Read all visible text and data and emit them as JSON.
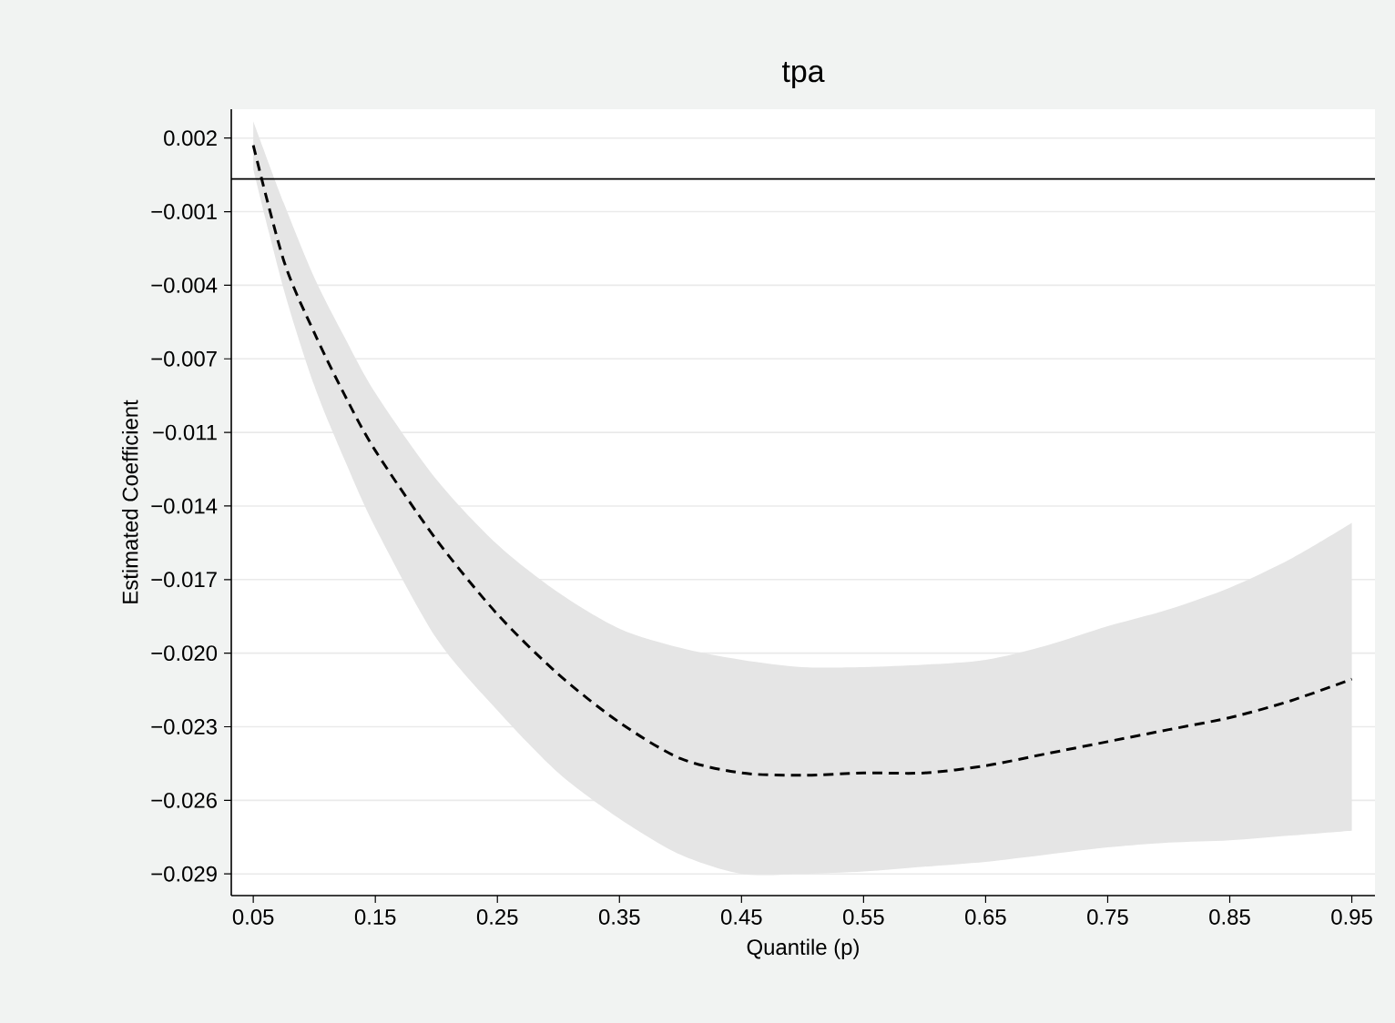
{
  "chart_data": {
    "type": "line",
    "title": "tpa",
    "xlabel": "Quantile (p)",
    "ylabel": "Estimated Coefficient",
    "xlim": [
      0.032,
      0.969
    ],
    "ylim": [
      -0.0298,
      0.0029
    ],
    "xticks": [
      0.05,
      0.15,
      0.25,
      0.35,
      0.45,
      0.55,
      0.65,
      0.75,
      0.85,
      0.95
    ],
    "yticks": [
      {
        "value": 0.0017,
        "label": "0.002"
      },
      {
        "value": -0.00136,
        "label": "−0.001"
      },
      {
        "value": -0.00442,
        "label": "−0.004"
      },
      {
        "value": -0.00748,
        "label": "−0.007"
      },
      {
        "value": -0.01054,
        "label": "−0.011"
      },
      {
        "value": -0.0136,
        "label": "−0.014"
      },
      {
        "value": -0.01666,
        "label": "−0.017"
      },
      {
        "value": -0.01972,
        "label": "−0.020"
      },
      {
        "value": -0.02278,
        "label": "−0.023"
      },
      {
        "value": -0.02584,
        "label": "−0.026"
      },
      {
        "value": -0.0289,
        "label": "−0.029"
      }
    ],
    "grid": "y",
    "line_style": "dashed",
    "ref_lines": [
      {
        "axis": "y",
        "value": 0,
        "color": "#000000"
      }
    ],
    "series": [
      {
        "color": "#000000",
        "x": [
          0.05,
          0.075,
          0.1,
          0.125,
          0.15,
          0.2,
          0.25,
          0.3,
          0.35,
          0.4,
          0.45,
          0.5,
          0.55,
          0.6,
          0.65,
          0.7,
          0.75,
          0.8,
          0.85,
          0.9,
          0.95
        ],
        "values": [
          0.0014,
          -0.0034,
          -0.0064,
          -0.009,
          -0.0113,
          -0.015,
          -0.0181,
          -0.0206,
          -0.0226,
          -0.0241,
          -0.0247,
          -0.0248,
          -0.0247,
          -0.0247,
          -0.0244,
          -0.0239,
          -0.0234,
          -0.0229,
          -0.0224,
          -0.0217,
          -0.0208
        ],
        "upper": [
          0.0024,
          -0.001,
          -0.0041,
          -0.0066,
          -0.0089,
          -0.0125,
          -0.0152,
          -0.0172,
          -0.0187,
          -0.0195,
          -0.02,
          -0.0203,
          -0.0203,
          -0.0202,
          -0.02,
          -0.0194,
          -0.0186,
          -0.0179,
          -0.017,
          -0.0158,
          -0.0143
        ],
        "lower": [
          0.0004,
          -0.0046,
          -0.0086,
          -0.0117,
          -0.0145,
          -0.0191,
          -0.0221,
          -0.0247,
          -0.0266,
          -0.0281,
          -0.0289,
          -0.0289,
          -0.0288,
          -0.0286,
          -0.0284,
          -0.0281,
          -0.0278,
          -0.0276,
          -0.0275,
          -0.0273,
          -0.0271
        ]
      }
    ]
  }
}
